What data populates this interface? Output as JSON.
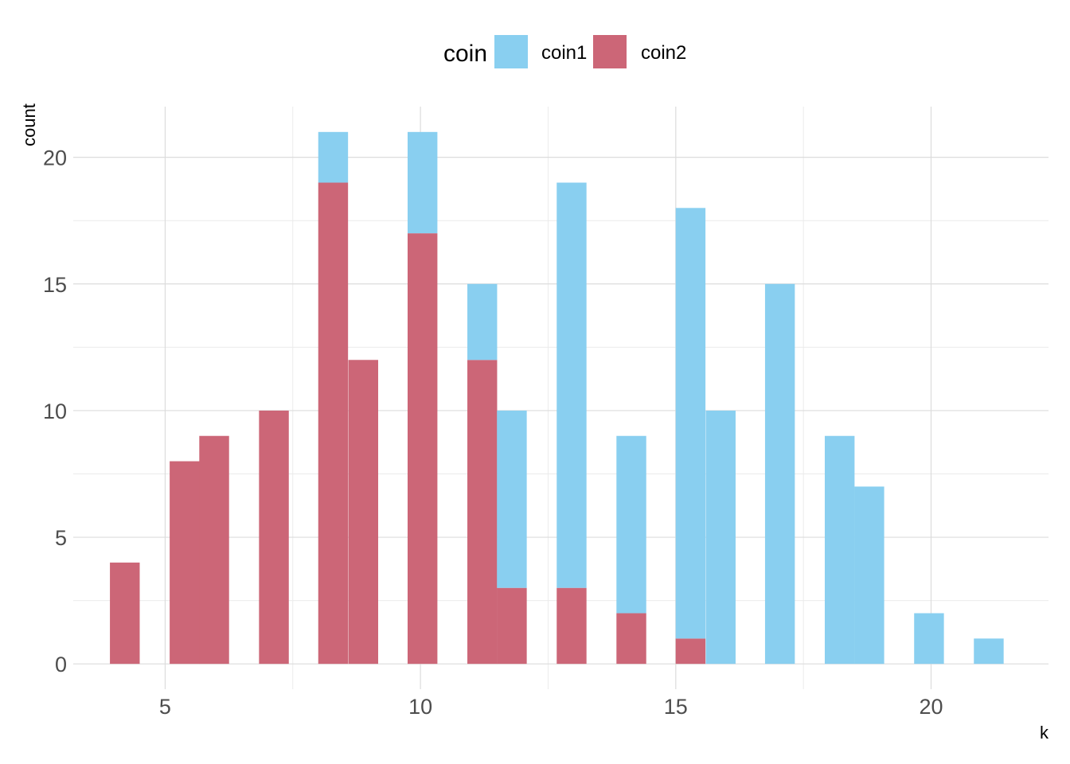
{
  "chart_data": {
    "type": "bar",
    "subtype": "histogram-stacked",
    "xlabel": "k",
    "ylabel": "count",
    "xlim": [
      3.2,
      22.3
    ],
    "ylim": [
      -1.0,
      22.0
    ],
    "x_ticks": [
      5,
      10,
      15,
      20
    ],
    "x_tick_labels": [
      "5",
      "10",
      "15",
      "20"
    ],
    "y_ticks": [
      0,
      5,
      10,
      15,
      20
    ],
    "y_tick_labels": [
      "0",
      "5",
      "10",
      "15",
      "20"
    ],
    "bin_width": 0.5833,
    "grid": true,
    "legend": {
      "title": "coin",
      "position": "top",
      "entries": [
        "coin1",
        "coin2"
      ]
    },
    "series": [
      {
        "name": "coin1",
        "color": "#89CFF0",
        "points": [
          {
            "x": 8.29,
            "y": 2
          },
          {
            "x": 10.04,
            "y": 4
          },
          {
            "x": 11.21,
            "y": 3
          },
          {
            "x": 11.79,
            "y": 7
          },
          {
            "x": 12.96,
            "y": 16
          },
          {
            "x": 14.13,
            "y": 7
          },
          {
            "x": 15.29,
            "y": 17
          },
          {
            "x": 15.88,
            "y": 10
          },
          {
            "x": 17.04,
            "y": 15
          },
          {
            "x": 18.21,
            "y": 9
          },
          {
            "x": 18.79,
            "y": 7
          },
          {
            "x": 19.96,
            "y": 2
          },
          {
            "x": 21.13,
            "y": 1
          }
        ]
      },
      {
        "name": "coin2",
        "color": "#CC6677",
        "points": [
          {
            "x": 4.21,
            "y": 4
          },
          {
            "x": 5.38,
            "y": 8
          },
          {
            "x": 5.96,
            "y": 9
          },
          {
            "x": 7.13,
            "y": 10
          },
          {
            "x": 8.29,
            "y": 19
          },
          {
            "x": 8.88,
            "y": 12
          },
          {
            "x": 10.04,
            "y": 17
          },
          {
            "x": 11.21,
            "y": 12
          },
          {
            "x": 11.79,
            "y": 3
          },
          {
            "x": 12.96,
            "y": 3
          },
          {
            "x": 14.13,
            "y": 2
          },
          {
            "x": 15.29,
            "y": 1
          }
        ]
      }
    ]
  }
}
